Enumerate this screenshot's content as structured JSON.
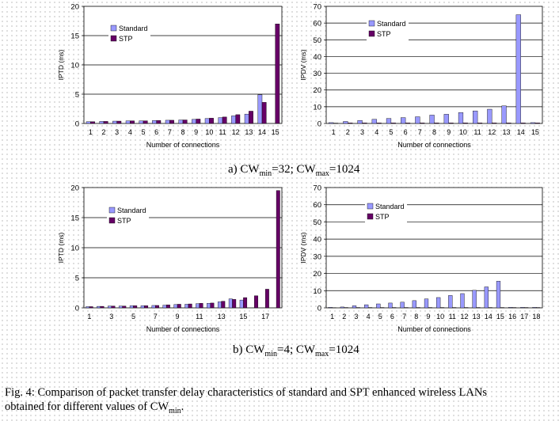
{
  "colors": {
    "standard": "#9999ff",
    "stp": "#660066",
    "border": "#000000"
  },
  "captions": {
    "a": {
      "cw": "a) CW",
      "min_sub": "min",
      "min_val": "=32; CW",
      "max_sub": "max",
      "max_val": "=1024"
    },
    "b": {
      "cw": "b) CW",
      "min_sub": "min",
      "min_val": "=4; CW",
      "max_sub": "max",
      "max_val": "=1024"
    },
    "figure_line1": "Fig. 4: Comparison of packet transfer delay characteristics of standard and SPT enhanced wireless LANs",
    "figure_line2": "obtained for different values of CW",
    "figure_sub": "min",
    "figure_end": "."
  },
  "chart_data": [
    {
      "id": "ipdt-a",
      "type": "bar",
      "categories": [
        "1",
        "2",
        "3",
        "4",
        "5",
        "6",
        "7",
        "8",
        "9",
        "10",
        "11",
        "12",
        "13",
        "14",
        "15"
      ],
      "tick_labels": [
        "1",
        "2",
        "3",
        "4",
        "5",
        "6",
        "7",
        "8",
        "9",
        "10",
        "11",
        "12",
        "13",
        "14",
        "15"
      ],
      "series": [
        {
          "name": "Standard",
          "values": [
            0.3,
            0.35,
            0.4,
            0.45,
            0.45,
            0.5,
            0.55,
            0.6,
            0.7,
            0.85,
            1.0,
            1.3,
            1.6,
            4.9,
            0
          ]
        },
        {
          "name": "STP",
          "values": [
            0.3,
            0.35,
            0.4,
            0.45,
            0.45,
            0.5,
            0.55,
            0.6,
            0.75,
            0.9,
            1.1,
            1.5,
            2.1,
            3.6,
            17.0
          ]
        }
      ],
      "ylabel": "IPTD (ms)",
      "xlabel": "Number of connections",
      "ylim": [
        0,
        20
      ],
      "yticks": [
        0,
        5,
        10,
        15,
        20
      ],
      "legend": "top-left"
    },
    {
      "id": "ipdv-a",
      "type": "bar",
      "categories": [
        "1",
        "2",
        "3",
        "4",
        "5",
        "6",
        "7",
        "8",
        "9",
        "10",
        "11",
        "12",
        "13",
        "14",
        "15"
      ],
      "tick_labels": [
        "1",
        "2",
        "3",
        "4",
        "5",
        "6",
        "7",
        "8",
        "9",
        "10",
        "11",
        "12",
        "13",
        "14",
        "15"
      ],
      "series": [
        {
          "name": "Standard",
          "values": [
            0.5,
            1.2,
            1.8,
            2.5,
            3.0,
            3.5,
            4.0,
            5.0,
            5.5,
            6.5,
            7.5,
            8.5,
            10.5,
            65.0,
            0.5
          ]
        },
        {
          "name": "STP",
          "values": [
            0.2,
            0.3,
            0.3,
            0.3,
            0.3,
            0.3,
            0.3,
            0.3,
            0.3,
            0.3,
            0.3,
            0.3,
            0.3,
            0.3,
            0.3
          ]
        }
      ],
      "ylabel": "IPDV (ms)",
      "xlabel": "Number of connections",
      "ylim": [
        0,
        70
      ],
      "yticks": [
        0,
        10,
        20,
        30,
        40,
        50,
        60,
        70
      ],
      "legend": "top-left"
    },
    {
      "id": "ipdt-b",
      "type": "bar",
      "categories": [
        "1",
        "2",
        "3",
        "4",
        "5",
        "6",
        "7",
        "8",
        "9",
        "10",
        "11",
        "12",
        "13",
        "14",
        "15",
        "16",
        "17",
        "18"
      ],
      "tick_labels": [
        "1",
        "",
        "3",
        "",
        "5",
        "",
        "7",
        "",
        "9",
        "",
        "11",
        "",
        "13",
        "",
        "15",
        "",
        "17",
        ""
      ],
      "series": [
        {
          "name": "Standard",
          "values": [
            0.2,
            0.25,
            0.3,
            0.3,
            0.35,
            0.35,
            0.4,
            0.45,
            0.55,
            0.6,
            0.7,
            0.75,
            1.0,
            1.5,
            1.3,
            0,
            0,
            0
          ]
        },
        {
          "name": "STP",
          "values": [
            0.2,
            0.25,
            0.3,
            0.3,
            0.35,
            0.35,
            0.4,
            0.5,
            0.6,
            0.65,
            0.75,
            0.8,
            1.1,
            1.4,
            1.7,
            2.0,
            3.1,
            19.5
          ]
        }
      ],
      "ylabel": "IPTD (ms)",
      "xlabel": "Number of connections",
      "ylim": [
        0,
        20
      ],
      "yticks": [
        0,
        5,
        10,
        15,
        20
      ],
      "legend": "top-left"
    },
    {
      "id": "ipdv-b",
      "type": "bar",
      "categories": [
        "1",
        "2",
        "3",
        "4",
        "5",
        "6",
        "7",
        "8",
        "9",
        "10",
        "11",
        "12",
        "13",
        "14",
        "15",
        "16",
        "17",
        "18"
      ],
      "tick_labels": [
        "1",
        "2",
        "3",
        "4",
        "5",
        "6",
        "7",
        "8",
        "9",
        "10",
        "11",
        "12",
        "13",
        "14",
        "15",
        "16",
        "17",
        "18"
      ],
      "series": [
        {
          "name": "Standard",
          "values": [
            0.3,
            0.5,
            1.2,
            1.8,
            2.3,
            2.8,
            3.3,
            4.2,
            5.2,
            6.0,
            7.2,
            8.3,
            10.2,
            12.2,
            15.5,
            0.3,
            0.3,
            0.3
          ]
        },
        {
          "name": "STP",
          "values": [
            0.1,
            0.2,
            0.2,
            0.2,
            0.2,
            0.2,
            0.2,
            0.2,
            0.2,
            0.2,
            0.2,
            0.2,
            0.2,
            0.2,
            0.2,
            0.2,
            0.2,
            0.2
          ]
        }
      ],
      "ylabel": "IPDV (ms)",
      "xlabel": "Number of connections",
      "ylim": [
        0,
        70
      ],
      "yticks": [
        0,
        10,
        20,
        30,
        40,
        50,
        60,
        70
      ],
      "legend": "top-left"
    }
  ]
}
